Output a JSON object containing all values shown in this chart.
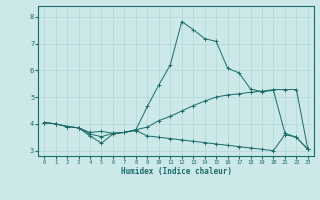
{
  "xlabel": "Humidex (Indice chaleur)",
  "xlim": [
    -0.5,
    23.5
  ],
  "ylim": [
    2.8,
    8.4
  ],
  "xticks": [
    0,
    1,
    2,
    3,
    4,
    5,
    6,
    7,
    8,
    9,
    10,
    11,
    12,
    13,
    14,
    15,
    16,
    17,
    18,
    19,
    20,
    21,
    22,
    23
  ],
  "yticks": [
    3,
    4,
    5,
    6,
    7,
    8
  ],
  "bg_color": "#cce8e8",
  "line_color": "#1a6b6b",
  "grid_color": "#b0d8d8",
  "line1": [
    4.05,
    4.0,
    3.9,
    3.85,
    3.55,
    3.28,
    3.62,
    3.68,
    3.75,
    3.55,
    3.5,
    3.45,
    3.4,
    3.35,
    3.3,
    3.25,
    3.2,
    3.15,
    3.1,
    3.05,
    3.0,
    3.6,
    3.5,
    3.05
  ],
  "line2": [
    4.05,
    4.0,
    3.9,
    3.85,
    3.68,
    3.72,
    3.65,
    3.68,
    3.78,
    4.65,
    5.45,
    6.2,
    7.82,
    7.52,
    7.18,
    7.08,
    6.08,
    5.9,
    5.3,
    5.2,
    5.25,
    3.65,
    3.5,
    3.05
  ],
  "line3": [
    4.05,
    4.0,
    3.9,
    3.85,
    3.62,
    3.52,
    3.65,
    3.68,
    3.78,
    3.88,
    4.12,
    4.28,
    4.48,
    4.68,
    4.85,
    5.0,
    5.08,
    5.12,
    5.18,
    5.22,
    5.28,
    5.28,
    5.28,
    3.05
  ],
  "figsize": [
    3.2,
    2.0
  ],
  "dpi": 100
}
